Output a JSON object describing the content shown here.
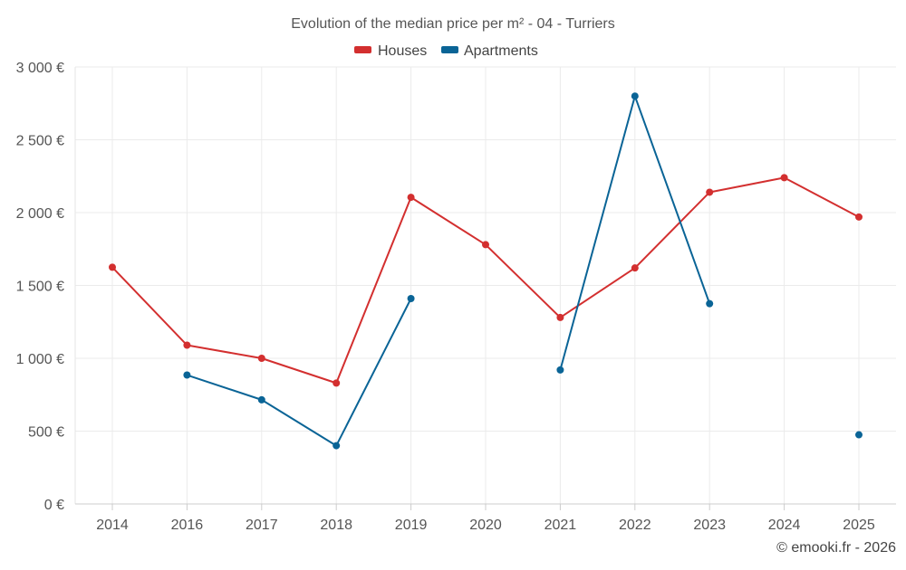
{
  "chart_data": {
    "type": "line",
    "title": "Evolution of the median price per m² - 04 - Turriers",
    "categories": [
      "2014",
      "2016",
      "2017",
      "2018",
      "2019",
      "2020",
      "2021",
      "2022",
      "2023",
      "2024",
      "2025"
    ],
    "y_tick_labels": [
      "0 €",
      "500 €",
      "1 000 €",
      "1 500 €",
      "2 000 €",
      "2 500 €",
      "3 000 €"
    ],
    "ylim": [
      0,
      3000
    ],
    "y_tick_step": 500,
    "grid": true,
    "legend_position": "top-center",
    "series": [
      {
        "name": "Houses",
        "color": "#d32f2f",
        "values": [
          1625,
          1090,
          1000,
          830,
          2105,
          1780,
          1280,
          1620,
          2140,
          2240,
          1970
        ]
      },
      {
        "name": "Apartments",
        "color": "#0a6496",
        "values": [
          null,
          885,
          715,
          400,
          1410,
          null,
          920,
          2800,
          1375,
          null,
          475
        ]
      }
    ]
  },
  "credit": "© emooki.fr - 2026"
}
